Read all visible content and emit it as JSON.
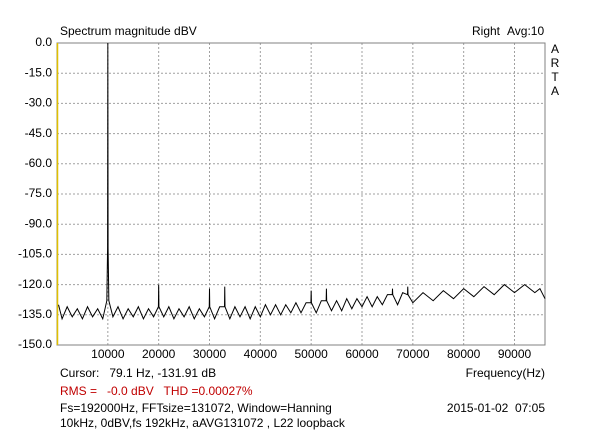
{
  "chart_data": {
    "type": "line",
    "title": "Spectrum magnitude dBV",
    "channel": "Right",
    "averaging": "Avg:10",
    "side_letters": [
      "A",
      "R",
      "T",
      "A"
    ],
    "cursor": "Cursor:   79.1 Hz, -131.91 dB",
    "x_label": "Frequency(Hz)",
    "rms": "RMS =   -0.0 dBV   THD =0.00027%",
    "settings": "Fs=192000Hz, FFTsize=131072, Window=Hanning",
    "timestamp": "2015-01-02  07:05",
    "note": "10kHz, 0dBV,fs 192kHz, aAVG131072 , L22 loopback",
    "color": "#000000",
    "grid": true,
    "xlim": [
      0,
      96000
    ],
    "ylim": [
      -150,
      0
    ],
    "xticks": [
      10000,
      20000,
      30000,
      40000,
      50000,
      60000,
      70000,
      80000,
      90000
    ],
    "yticks": [
      {
        "value": 0,
        "label": "0.0"
      },
      {
        "value": -15,
        "label": "-15.0"
      },
      {
        "value": -30,
        "label": "-30.0"
      },
      {
        "value": -45,
        "label": "-45.0"
      },
      {
        "value": -60,
        "label": "-60.0"
      },
      {
        "value": -75,
        "label": "-75.0"
      },
      {
        "value": -90,
        "label": "-90.0"
      },
      {
        "value": -105,
        "label": "-105.0"
      },
      {
        "value": -120,
        "label": "-120.0"
      },
      {
        "value": -135,
        "label": "-135.0"
      },
      {
        "value": -150,
        "label": "-150.0"
      }
    ],
    "x": [
      300,
      1000,
      2000,
      3000,
      4000,
      5000,
      6000,
      7000,
      8000,
      9000,
      9800,
      9950,
      10000,
      10050,
      10200,
      11000,
      12000,
      13000,
      14000,
      15000,
      16000,
      17000,
      18000,
      19000,
      19950,
      20000,
      20050,
      21000,
      22000,
      23000,
      24000,
      25000,
      26000,
      27000,
      28000,
      29000,
      29950,
      30000,
      30050,
      31000,
      32000,
      32950,
      33000,
      33050,
      34000,
      35000,
      36000,
      37000,
      38000,
      39000,
      40000,
      41000,
      42000,
      43000,
      44000,
      45000,
      46000,
      47000,
      48000,
      49000,
      49950,
      50000,
      50050,
      51000,
      52000,
      52950,
      53000,
      53050,
      54000,
      55000,
      56000,
      57000,
      58000,
      59000,
      60000,
      61000,
      62000,
      63000,
      64000,
      65000,
      65950,
      66000,
      66050,
      67000,
      68000,
      68950,
      69000,
      69050,
      70000,
      72000,
      74000,
      76000,
      78000,
      80000,
      82000,
      84000,
      86000,
      88000,
      90000,
      92000,
      94000,
      95000,
      96000
    ],
    "values": [
      -130,
      -137,
      -131,
      -136,
      -132,
      -137,
      -131,
      -136,
      -132,
      -137,
      -128,
      -102,
      0,
      -102,
      -128,
      -136,
      -131,
      -137,
      -132,
      -136,
      -131,
      -137,
      -132,
      -136,
      -131,
      -120,
      -131,
      -136,
      -131,
      -137,
      -132,
      -136,
      -131,
      -137,
      -132,
      -136,
      -131,
      -122,
      -131,
      -137,
      -131,
      -131,
      -121,
      -131,
      -137,
      -131,
      -136,
      -131,
      -137,
      -131,
      -136,
      -130,
      -135,
      -130,
      -135,
      -130,
      -134,
      -129,
      -134,
      -129,
      -129,
      -123,
      -129,
      -134,
      -128,
      -128,
      -122,
      -128,
      -133,
      -128,
      -133,
      -127,
      -132,
      -127,
      -131,
      -126,
      -131,
      -126,
      -130,
      -125,
      -125,
      -122,
      -125,
      -130,
      -124,
      -125,
      -121,
      -125,
      -129,
      -124,
      -128,
      -123,
      -127,
      -122,
      -126,
      -121,
      -125,
      -120,
      -124,
      -120,
      -124,
      -122,
      -127
    ]
  }
}
